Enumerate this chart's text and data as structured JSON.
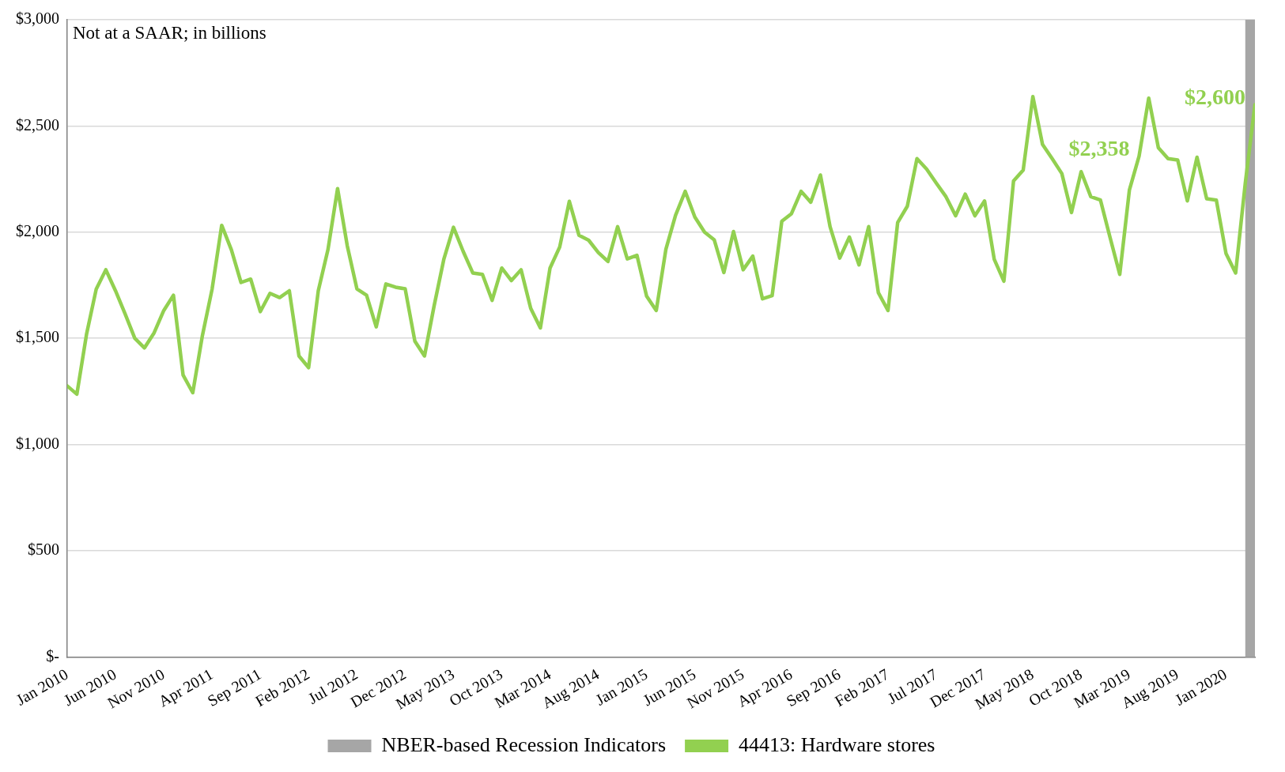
{
  "chart_data": {
    "type": "line",
    "x": [
      "2010-01",
      "2010-02",
      "2010-03",
      "2010-04",
      "2010-05",
      "2010-06",
      "2010-07",
      "2010-08",
      "2010-09",
      "2010-10",
      "2010-11",
      "2010-12",
      "2011-01",
      "2011-02",
      "2011-03",
      "2011-04",
      "2011-05",
      "2011-06",
      "2011-07",
      "2011-08",
      "2011-09",
      "2011-10",
      "2011-11",
      "2011-12",
      "2012-01",
      "2012-02",
      "2012-03",
      "2012-04",
      "2012-05",
      "2012-06",
      "2012-07",
      "2012-08",
      "2012-09",
      "2012-10",
      "2012-11",
      "2012-12",
      "2013-01",
      "2013-02",
      "2013-03",
      "2013-04",
      "2013-05",
      "2013-06",
      "2013-07",
      "2013-08",
      "2013-09",
      "2013-10",
      "2013-11",
      "2013-12",
      "2014-01",
      "2014-02",
      "2014-03",
      "2014-04",
      "2014-05",
      "2014-06",
      "2014-07",
      "2014-08",
      "2014-09",
      "2014-10",
      "2014-11",
      "2014-12",
      "2015-01",
      "2015-02",
      "2015-03",
      "2015-04",
      "2015-05",
      "2015-06",
      "2015-07",
      "2015-08",
      "2015-09",
      "2015-10",
      "2015-11",
      "2015-12",
      "2016-01",
      "2016-02",
      "2016-03",
      "2016-04",
      "2016-05",
      "2016-06",
      "2016-07",
      "2016-08",
      "2016-09",
      "2016-10",
      "2016-11",
      "2016-12",
      "2017-01",
      "2017-02",
      "2017-03",
      "2017-04",
      "2017-05",
      "2017-06",
      "2017-07",
      "2017-08",
      "2017-09",
      "2017-10",
      "2017-11",
      "2017-12",
      "2018-01",
      "2018-02",
      "2018-03",
      "2018-04",
      "2018-05",
      "2018-06",
      "2018-07",
      "2018-08",
      "2018-09",
      "2018-10",
      "2018-11",
      "2018-12",
      "2019-01",
      "2019-02",
      "2019-03",
      "2019-04",
      "2019-05",
      "2019-06",
      "2019-07",
      "2019-08",
      "2019-09",
      "2019-10",
      "2019-11",
      "2019-12",
      "2020-01",
      "2020-02",
      "2020-03",
      "2020-04"
    ],
    "series": [
      {
        "name": "44413: Hardware stores",
        "color": "#92d050",
        "values": [
          1276,
          1237,
          1519,
          1731,
          1823,
          1724,
          1615,
          1500,
          1455,
          1526,
          1631,
          1703,
          1327,
          1244,
          1513,
          1731,
          2032,
          1917,
          1763,
          1779,
          1626,
          1712,
          1692,
          1724,
          1417,
          1362,
          1724,
          1917,
          2205,
          1936,
          1733,
          1703,
          1554,
          1756,
          1741,
          1733,
          1487,
          1417,
          1654,
          1872,
          2023,
          1910,
          1808,
          1801,
          1679,
          1831,
          1772,
          1823,
          1641,
          1549,
          1831,
          1930,
          2145,
          1985,
          1962,
          1904,
          1862,
          2026,
          1874,
          1891,
          1699,
          1631,
          1920,
          2080,
          2192,
          2071,
          2000,
          1964,
          1810,
          2003,
          1823,
          1887,
          1686,
          1701,
          2051,
          2087,
          2192,
          2141,
          2269,
          2026,
          1878,
          1977,
          1846,
          2026,
          1715,
          1631,
          2045,
          2122,
          2346,
          2297,
          2231,
          2167,
          2077,
          2179,
          2077,
          2147,
          1872,
          1769,
          2241,
          2292,
          2638,
          2413,
          2346,
          2276,
          2092,
          2285,
          2167,
          2151,
          1974,
          1801,
          2199,
          2358,
          2631,
          2397,
          2346,
          2340,
          2147,
          2353,
          2157,
          2151,
          1900,
          1808,
          2231,
          2600
        ]
      }
    ],
    "xlim": [
      "2010-01",
      "2020-04"
    ],
    "xticks": [
      {
        "value": "2010-01",
        "label": "Jan 2010"
      },
      {
        "value": "2010-06",
        "label": "Jun 2010"
      },
      {
        "value": "2010-11",
        "label": "Nov 2010"
      },
      {
        "value": "2011-04",
        "label": "Apr 2011"
      },
      {
        "value": "2011-09",
        "label": "Sep 2011"
      },
      {
        "value": "2012-02",
        "label": "Feb 2012"
      },
      {
        "value": "2012-07",
        "label": "Jul 2012"
      },
      {
        "value": "2012-12",
        "label": "Dec 2012"
      },
      {
        "value": "2013-05",
        "label": "May 2013"
      },
      {
        "value": "2013-10",
        "label": "Oct 2013"
      },
      {
        "value": "2014-03",
        "label": "Mar 2014"
      },
      {
        "value": "2014-08",
        "label": "Aug 2014"
      },
      {
        "value": "2015-01",
        "label": "Jan 2015"
      },
      {
        "value": "2015-06",
        "label": "Jun 2015"
      },
      {
        "value": "2015-11",
        "label": "Nov 2015"
      },
      {
        "value": "2016-04",
        "label": "Apr 2016"
      },
      {
        "value": "2016-09",
        "label": "Sep 2016"
      },
      {
        "value": "2017-02",
        "label": "Feb 2017"
      },
      {
        "value": "2017-07",
        "label": "Jul 2017"
      },
      {
        "value": "2017-12",
        "label": "Dec 2017"
      },
      {
        "value": "2018-05",
        "label": "May 2018"
      },
      {
        "value": "2018-10",
        "label": "Oct 2018"
      },
      {
        "value": "2019-03",
        "label": "Mar 2019"
      },
      {
        "value": "2019-08",
        "label": "Aug 2019"
      },
      {
        "value": "2020-01",
        "label": "Jan 2020"
      }
    ],
    "ylim": [
      0,
      3000
    ],
    "yticks": [
      {
        "value": 0,
        "label": "$-"
      },
      {
        "value": 500,
        "label": "$500"
      },
      {
        "value": 1000,
        "label": "$1,000"
      },
      {
        "value": 1500,
        "label": "$1,500"
      },
      {
        "value": 2000,
        "label": "$2,000"
      },
      {
        "value": 2500,
        "label": "$2,500"
      },
      {
        "value": 3000,
        "label": "$3,000"
      }
    ],
    "bands": [
      {
        "axis": "x",
        "from": "2020-03",
        "to": "2020-04",
        "label": "NBER-based Recession Indicators",
        "color": "#a6a6a6"
      }
    ],
    "annotations": [
      "Not at a SAAR; in billions",
      {
        "text": "$2,358",
        "x": "2019-04",
        "y": 2358
      },
      {
        "text": "$2,600",
        "x": "2020-04",
        "y": 2600
      }
    ],
    "grid": "y",
    "legend": "bottom",
    "marker": "none",
    "line_style": "solid"
  }
}
